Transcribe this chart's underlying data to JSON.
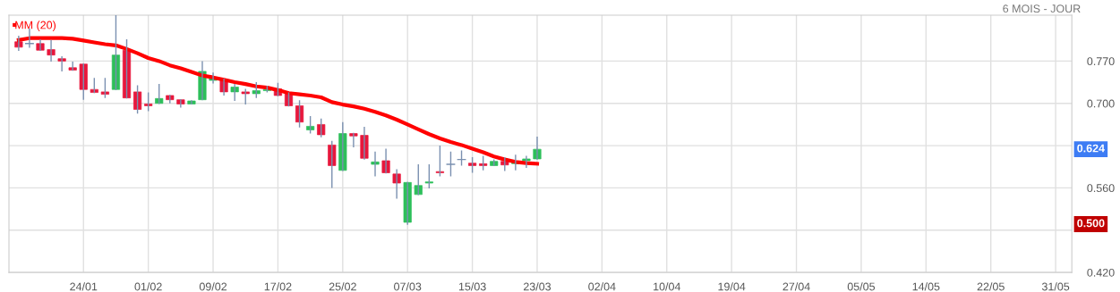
{
  "chart_data": {
    "type": "candlestick",
    "subtitle": "6 MOIS - JOUR",
    "categories": [
      null,
      null,
      null,
      null,
      null,
      null,
      "24/01",
      null,
      null,
      null,
      null,
      null,
      "01/02",
      null,
      null,
      null,
      null,
      null,
      "09/02",
      null,
      null,
      null,
      null,
      null,
      "17/02",
      null,
      null,
      null,
      null,
      null,
      "25/02",
      null,
      null,
      null,
      null,
      null,
      "07/03",
      null,
      null,
      null,
      null,
      null,
      "15/03",
      null,
      null,
      null,
      null,
      null,
      "23/03",
      null,
      null,
      null,
      null,
      null,
      "02/04",
      null,
      null,
      null,
      null,
      null,
      "10/04",
      null,
      null,
      null,
      null,
      null,
      "19/04",
      null,
      null,
      null,
      null,
      null,
      "27/04",
      null,
      null,
      null,
      null,
      null,
      "05/05",
      null,
      null,
      null,
      null,
      null,
      "14/05",
      null,
      null,
      null,
      null,
      null,
      "22/05",
      null,
      null,
      null,
      null,
      null,
      "31/05",
      null
    ],
    "ohlc": [
      [
        0.802,
        0.811,
        0.788,
        0.793
      ],
      [
        0.799,
        0.823,
        0.793,
        0.799
      ],
      [
        0.799,
        0.805,
        0.788,
        0.788
      ],
      [
        0.789,
        0.804,
        0.77,
        0.78
      ],
      [
        0.774,
        0.777,
        0.754,
        0.77
      ],
      [
        0.759,
        0.768,
        0.755,
        0.755
      ],
      [
        0.765,
        0.765,
        0.707,
        0.723
      ],
      [
        0.723,
        0.741,
        0.718,
        0.718
      ],
      [
        0.719,
        0.741,
        0.71,
        0.715
      ],
      [
        0.723,
        0.845,
        0.723,
        0.78
      ],
      [
        0.788,
        0.805,
        0.709,
        0.709
      ],
      [
        0.719,
        0.729,
        0.684,
        0.69
      ],
      [
        0.699,
        0.717,
        0.688,
        0.696
      ],
      [
        0.7,
        0.731,
        0.7,
        0.708
      ],
      [
        0.713,
        0.713,
        0.701,
        0.706
      ],
      [
        0.706,
        0.706,
        0.694,
        0.699
      ],
      [
        0.699,
        0.704,
        0.699,
        0.704
      ],
      [
        0.706,
        0.769,
        0.706,
        0.753
      ],
      [
        0.738,
        0.75,
        0.734,
        0.741
      ],
      [
        0.74,
        0.74,
        0.714,
        0.719
      ],
      [
        0.719,
        0.731,
        0.705,
        0.727
      ],
      [
        0.719,
        0.723,
        0.699,
        0.716
      ],
      [
        0.716,
        0.734,
        0.71,
        0.721
      ],
      [
        0.721,
        0.728,
        0.719,
        0.723
      ],
      [
        0.724,
        0.733,
        0.713,
        0.713
      ],
      [
        0.717,
        0.717,
        0.696,
        0.696
      ],
      [
        0.696,
        0.704,
        0.661,
        0.669
      ],
      [
        0.656,
        0.678,
        0.651,
        0.662
      ],
      [
        0.665,
        0.674,
        0.645,
        0.648
      ],
      [
        0.631,
        0.637,
        0.561,
        0.597
      ],
      [
        0.589,
        0.668,
        0.589,
        0.65
      ],
      [
        0.65,
        0.65,
        0.628,
        0.646
      ],
      [
        0.647,
        0.66,
        0.608,
        0.609
      ],
      [
        0.599,
        0.619,
        0.58,
        0.603
      ],
      [
        0.605,
        0.624,
        0.585,
        0.585
      ],
      [
        0.583,
        0.59,
        0.543,
        0.568
      ],
      [
        0.503,
        0.569,
        0.5,
        0.569
      ],
      [
        0.549,
        0.598,
        0.549,
        0.564
      ],
      [
        0.568,
        0.598,
        0.56,
        0.57
      ],
      [
        0.587,
        0.629,
        0.58,
        0.585
      ],
      [
        0.599,
        0.619,
        0.58,
        0.599
      ],
      [
        0.607,
        0.621,
        0.598,
        0.607
      ],
      [
        0.601,
        0.61,
        0.586,
        0.597
      ],
      [
        0.6,
        0.612,
        0.59,
        0.597
      ],
      [
        0.597,
        0.606,
        0.597,
        0.604
      ],
      [
        0.604,
        0.61,
        0.589,
        0.598
      ],
      [
        0.6,
        0.614,
        0.59,
        0.604
      ],
      [
        0.605,
        0.612,
        0.594,
        0.608
      ],
      [
        0.608,
        0.644,
        0.608,
        0.624
      ],
      null,
      null,
      null,
      null,
      null,
      null,
      null,
      null,
      null,
      null,
      null,
      null,
      null,
      null,
      null,
      null,
      null,
      null,
      null,
      null,
      null,
      null,
      null,
      null,
      null,
      null,
      null,
      null,
      null,
      null,
      null,
      null,
      null,
      null,
      null,
      null,
      null,
      null,
      null,
      null,
      null,
      null,
      null,
      null,
      null,
      null,
      null,
      null,
      null
    ],
    "series": [
      {
        "name": "MM (20)",
        "type": "line",
        "color": "#ff0000",
        "values": [
          0.805,
          0.808,
          0.808,
          0.808,
          0.808,
          0.807,
          0.804,
          0.801,
          0.798,
          0.796,
          0.79,
          0.783,
          0.775,
          0.77,
          0.763,
          0.758,
          0.752,
          0.746,
          0.743,
          0.739,
          0.735,
          0.732,
          0.728,
          0.726,
          0.722,
          0.717,
          0.715,
          0.713,
          0.71,
          0.702,
          0.698,
          0.695,
          0.691,
          0.686,
          0.68,
          0.673,
          0.665,
          0.657,
          0.649,
          0.642,
          0.636,
          0.631,
          0.625,
          0.619,
          0.612,
          0.607,
          0.603,
          0.601,
          0.6,
          null,
          null,
          null,
          null,
          null,
          null,
          null,
          null,
          null,
          null,
          null,
          null,
          null,
          null,
          null,
          null,
          null,
          null,
          null,
          null,
          null,
          null,
          null,
          null,
          null,
          null,
          null,
          null,
          null,
          null,
          null,
          null,
          null,
          null,
          null,
          null,
          null,
          null,
          null,
          null,
          null,
          null,
          null,
          null,
          null,
          null,
          null,
          null,
          null
        ]
      }
    ],
    "colors": [
      "#e8173c",
      "#7a90b0",
      "#e8173c",
      "#e8173c",
      "#e8173c",
      "#e8173c",
      "#e8173c",
      "#e8173c",
      "#e8173c",
      "#2dbf5a",
      "#e8173c",
      "#e8173c",
      "#e8173c",
      "#2dbf5a",
      "#e8173c",
      "#e8173c",
      "#2dbf5a",
      "#2dbf5a",
      "#2dbf5a",
      "#e8173c",
      "#2dbf5a",
      "#e8173c",
      "#2dbf5a",
      "#2dbf5a",
      "#e8173c",
      "#e8173c",
      "#e8173c",
      "#2dbf5a",
      "#e8173c",
      "#e8173c",
      "#2dbf5a",
      "#e8173c",
      "#e8173c",
      "#2dbf5a",
      "#e8173c",
      "#e8173c",
      "#2dbf5a",
      "#2dbf5a",
      "#2dbf5a",
      "#e8173c",
      "#7a90b0",
      "#7a90b0",
      "#e8173c",
      "#e8173c",
      "#2dbf5a",
      "#e8173c",
      "#2dbf5a",
      "#2dbf5a",
      "#2dbf5a",
      null,
      null,
      null,
      null,
      null,
      null,
      null,
      null,
      null,
      null,
      null,
      null,
      null,
      null,
      null,
      null,
      null,
      null,
      null,
      null,
      null,
      null,
      null,
      null,
      null,
      null,
      null,
      null,
      null,
      null,
      null,
      null,
      null,
      null,
      null,
      null,
      null,
      null,
      null,
      null,
      null,
      null,
      null,
      null,
      null,
      null,
      null,
      null,
      null
    ],
    "ylim": [
      0.42,
      0.846
    ],
    "yticks": [
      {
        "value": 0.42,
        "label": "0.420"
      },
      {
        "value": 0.49,
        "label": null
      },
      {
        "value": 0.56,
        "label": "0.560"
      },
      {
        "value": 0.63,
        "label": null
      },
      {
        "value": 0.7,
        "label": "0.700"
      },
      {
        "value": 0.77,
        "label": "0.770"
      }
    ],
    "annotations": [
      {
        "text": "0.624",
        "y": 0.624
      },
      {
        "text": "0.500",
        "y": 0.5
      }
    ],
    "grid": true,
    "legend": "top left"
  }
}
